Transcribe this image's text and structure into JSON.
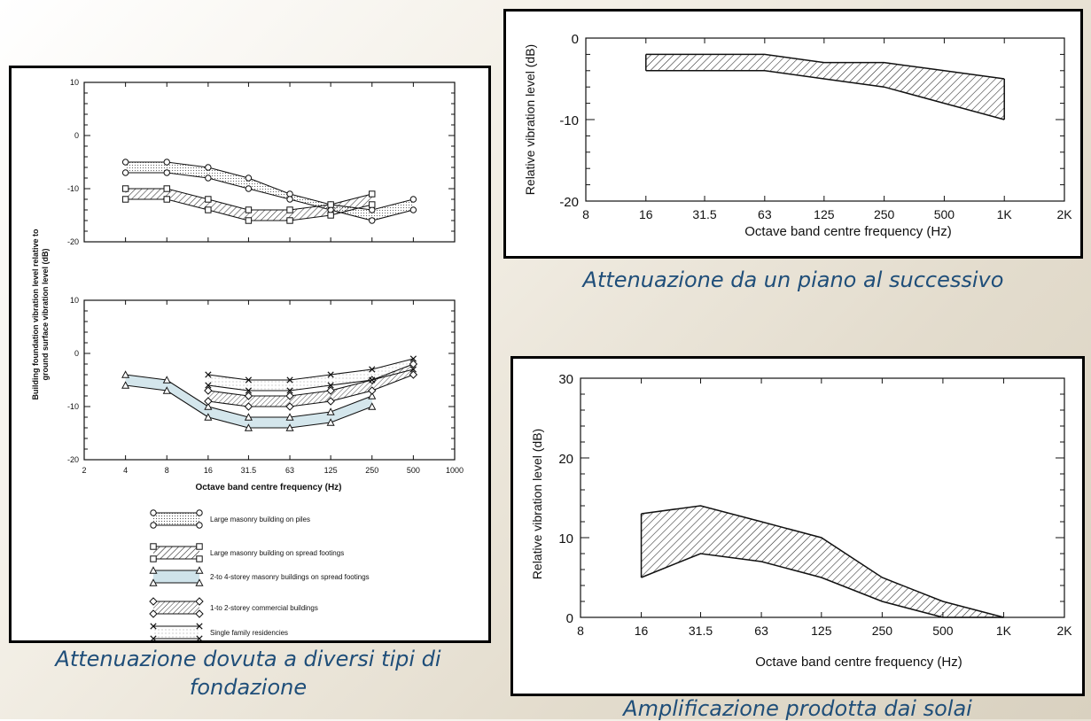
{
  "captions": {
    "left_line1": "Attenuazione dovuta a diversi tipi di",
    "left_line2": "fondazione",
    "top_right": "Attenuazione da un piano al successivo",
    "bottom_right": "Amplificazione prodotta dai solai"
  },
  "chart_data": [
    {
      "id": "foundation-top",
      "type": "area",
      "ylabel": "Building foundation vibration level relative to ground surface vibration level (dB)",
      "ylabel_line1": "Building foundation vibration level relative to",
      "ylabel_line2": "ground surface vibration level (dB)",
      "yticks": [
        "10",
        "0",
        "-10",
        "-20"
      ],
      "ylim": [
        -20,
        10
      ],
      "x_scale": "log2",
      "xlim": [
        2,
        1000
      ],
      "bands": [
        {
          "name": "Large masonry building on piles",
          "marker": "circle",
          "x": [
            4,
            8,
            16,
            31.5,
            63,
            125,
            250,
            500
          ],
          "upper": [
            -5,
            -5,
            -6,
            -8,
            -11,
            -13,
            -14,
            -12
          ],
          "lower": [
            -7,
            -7,
            -8,
            -10,
            -12,
            -14,
            -16,
            -14
          ]
        },
        {
          "name": "Large masonry building on spread footings",
          "marker": "square",
          "x": [
            4,
            8,
            16,
            31.5,
            63,
            125,
            250
          ],
          "upper": [
            -10,
            -10,
            -12,
            -14,
            -14,
            -13,
            -11
          ],
          "lower": [
            -12,
            -12,
            -14,
            -16,
            -16,
            -15,
            -13
          ]
        }
      ]
    },
    {
      "id": "foundation-bottom",
      "type": "area",
      "xlabel": "Octave band centre frequency (Hz)",
      "xticks": [
        "2",
        "4",
        "8",
        "16",
        "31.5",
        "63",
        "125",
        "250",
        "500",
        "1000"
      ],
      "yticks": [
        "10",
        "0",
        "-10",
        "-20"
      ],
      "ylim": [
        -20,
        10
      ],
      "x_scale": "log2",
      "xlim": [
        2,
        1000
      ],
      "bands": [
        {
          "name": "2-to 4-storey masonry buildings on spread footings",
          "marker": "triangle",
          "x": [
            4,
            8,
            16,
            31.5,
            63,
            125,
            250
          ],
          "upper": [
            -4,
            -5,
            -10,
            -12,
            -12,
            -11,
            -8
          ],
          "lower": [
            -6,
            -7,
            -12,
            -14,
            -14,
            -13,
            -10
          ]
        },
        {
          "name": "1-to 2-storey commercial buildings",
          "marker": "diamond",
          "x": [
            16,
            31.5,
            63,
            125,
            250,
            500
          ],
          "upper": [
            -7,
            -8,
            -8,
            -7,
            -5,
            -2
          ],
          "lower": [
            -9,
            -10,
            -10,
            -9,
            -7,
            -4
          ]
        },
        {
          "name": "Single family residencies",
          "marker": "x",
          "x": [
            16,
            31.5,
            63,
            125,
            250,
            500
          ],
          "upper": [
            -4,
            -5,
            -5,
            -4,
            -3,
            -1
          ],
          "lower": [
            -6,
            -7,
            -7,
            -6,
            -5,
            -3
          ]
        }
      ]
    },
    {
      "id": "floor-attenuation",
      "type": "area",
      "xlabel": "Octave band centre frequency (Hz)",
      "ylabel": "Relative vibration level (dB)",
      "xticks": [
        "8",
        "16",
        "31.5",
        "63",
        "125",
        "250",
        "500",
        "1K",
        "2K"
      ],
      "yticks": [
        "0",
        "-10",
        "-20"
      ],
      "ylim": [
        -20,
        0
      ],
      "x_scale": "log2",
      "xlim": [
        8,
        2000
      ],
      "x": [
        16,
        31.5,
        63,
        125,
        250,
        500,
        1000
      ],
      "upper": [
        -2,
        -2,
        -2,
        -3,
        -3,
        -4,
        -5
      ],
      "lower": [
        -4,
        -4,
        -4,
        -5,
        -6,
        -8,
        -10
      ]
    },
    {
      "id": "floor-amplification",
      "type": "area",
      "xlabel": "Octave band centre frequency (Hz)",
      "ylabel": "Relative vibration level (dB)",
      "xticks": [
        "8",
        "16",
        "31.5",
        "63",
        "125",
        "250",
        "500",
        "1K",
        "2K"
      ],
      "yticks": [
        "30",
        "20",
        "10",
        "0"
      ],
      "ylim": [
        0,
        30
      ],
      "x_scale": "log2",
      "xlim": [
        8,
        2000
      ],
      "x": [
        16,
        31.5,
        63,
        125,
        250,
        500,
        1000
      ],
      "upper": [
        13,
        14,
        12,
        10,
        5,
        2,
        0
      ],
      "lower": [
        5,
        8,
        7,
        5,
        2,
        0,
        0
      ]
    }
  ]
}
